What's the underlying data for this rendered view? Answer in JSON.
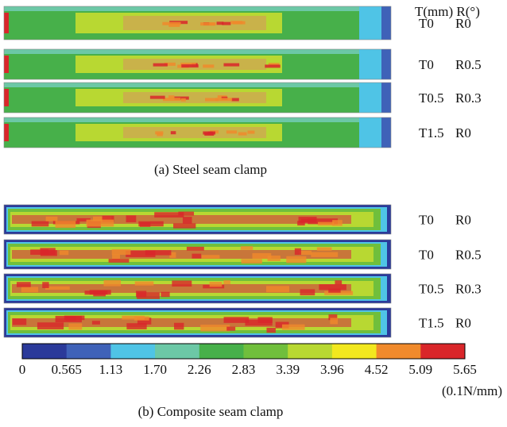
{
  "header": {
    "label": "T(mm) R(°)"
  },
  "panels": [
    {
      "caption": "(a) Steel seam clamp",
      "rows": [
        [
          "T0",
          "R0"
        ],
        [
          "T0",
          "R0.5"
        ],
        [
          "T0.5",
          "R0.3"
        ],
        [
          "T1.5",
          "R0"
        ]
      ]
    },
    {
      "caption": "(b) Composite seam clamp",
      "rows": [
        [
          "T0",
          "R0"
        ],
        [
          "T0",
          "R0.5"
        ],
        [
          "T0.5",
          "R0.3"
        ],
        [
          "T1.5",
          "R0"
        ]
      ]
    }
  ],
  "colorbar": {
    "colors": [
      "#2b3a9a",
      "#3f62b8",
      "#4fc4e6",
      "#6cc8a6",
      "#47b04a",
      "#70bf3c",
      "#b8d832",
      "#f2e81e",
      "#f08a2c",
      "#d9262a"
    ],
    "ticks": [
      "0",
      "0.565",
      "1.13",
      "1.70",
      "2.26",
      "2.83",
      "3.39",
      "3.96",
      "4.52",
      "5.09",
      "5.65"
    ],
    "unit": "(0.1N/mm)"
  }
}
